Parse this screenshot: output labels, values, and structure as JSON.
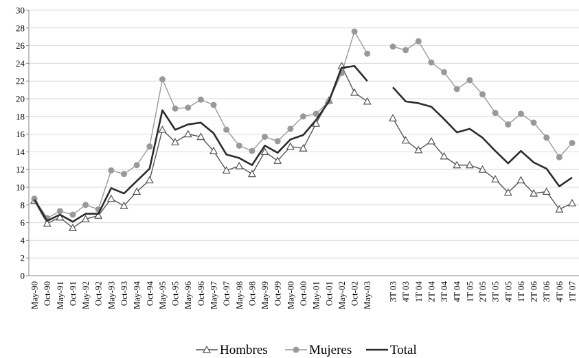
{
  "chart_data": {
    "type": "line",
    "categories": [
      "May-90",
      "Oct-90",
      "May-91",
      "Oct-91",
      "May-92",
      "Oct-92",
      "May-93",
      "Oct-93",
      "May-94",
      "Oct-94",
      "May-95",
      "Oct-95",
      "May-96",
      "Oct-96",
      "May-97",
      "Oct-97",
      "May-98",
      "Oct-98",
      "May-99",
      "Oct-99",
      "May-00",
      "Oct-00",
      "May-01",
      "Oct-01",
      "May-02",
      "Oct-02",
      "May-03",
      null,
      "3T 03",
      "4T 03",
      "1T 04",
      "2T 04",
      "3T 04",
      "4T 04",
      "1T 05",
      "2T 05",
      "3T 05",
      "4T 05",
      "1T 06",
      "2T 06",
      "3T 06",
      "4T 06",
      "1T 07"
    ],
    "series": [
      {
        "name": "Hombres",
        "color": "#555555",
        "marker": "triangle",
        "values": [
          8.5,
          5.9,
          6.6,
          5.4,
          6.4,
          6.8,
          8.7,
          7.9,
          9.5,
          10.8,
          16.5,
          15.1,
          16.0,
          15.7,
          14.1,
          11.9,
          12.4,
          11.5,
          14.0,
          13.0,
          14.6,
          14.4,
          17.2,
          19.8,
          23.7,
          20.7,
          19.7,
          null,
          17.8,
          15.3,
          14.2,
          15.2,
          13.5,
          12.5,
          12.5,
          12.0,
          10.9,
          9.4,
          10.8,
          9.3,
          9.5,
          7.5,
          8.2
        ]
      },
      {
        "name": "Mujeres",
        "color": "#999999",
        "marker": "circle",
        "values": [
          8.7,
          6.5,
          7.3,
          6.9,
          8.0,
          7.5,
          11.9,
          11.5,
          12.5,
          14.6,
          22.2,
          18.9,
          19.0,
          19.9,
          19.3,
          16.5,
          14.7,
          14.1,
          15.7,
          15.2,
          16.6,
          18.0,
          18.3,
          19.7,
          22.9,
          27.6,
          25.1,
          null,
          25.9,
          25.5,
          26.5,
          24.1,
          23.0,
          21.1,
          22.1,
          20.5,
          18.4,
          17.1,
          18.3,
          17.3,
          15.6,
          13.4,
          15.0
        ]
      },
      {
        "name": "Total",
        "color": "#2b2b2b",
        "marker": "none",
        "values": [
          8.6,
          6.2,
          6.9,
          6.1,
          7.0,
          7.0,
          9.9,
          9.3,
          10.7,
          12.1,
          18.7,
          16.5,
          17.1,
          17.3,
          16.1,
          13.7,
          13.3,
          12.5,
          14.7,
          13.9,
          15.4,
          15.9,
          17.6,
          19.7,
          23.5,
          23.7,
          22.0,
          null,
          21.3,
          19.7,
          19.5,
          19.1,
          17.7,
          16.2,
          16.6,
          15.6,
          14.1,
          12.7,
          14.1,
          12.8,
          12.1,
          10.1,
          11.1
        ]
      }
    ],
    "ylim": [
      0,
      30
    ],
    "yticks": [
      0,
      2,
      4,
      6,
      8,
      10,
      12,
      14,
      16,
      18,
      20,
      22,
      24,
      26,
      28,
      30
    ],
    "grid": true,
    "legend": "bottom"
  }
}
